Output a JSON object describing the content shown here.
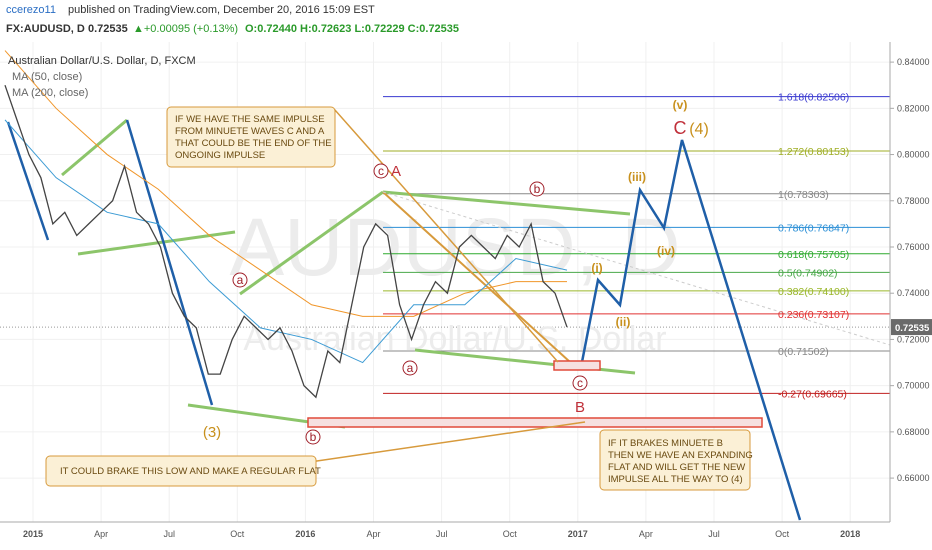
{
  "chart_data": {
    "type": "line",
    "header": {
      "author": "ccerezo11",
      "published": "published on TradingView.com, December 20, 2016 15:09 EST",
      "symbol": "FX:AUDUSD, D",
      "price": "0.72535",
      "change": "▲+0.00095 (+0.13%)",
      "ohlc": "O:0.72440 H:0.72623 L:0.72229 C:0.72535"
    },
    "watermark": "AUDUSD, D",
    "watermark_sub": "Australian Dollar/U.S. Dollar",
    "series": [
      {
        "name": "Australian Dollar/U.S. Dollar, D, FXCM",
        "color": "#444444",
        "values": [
          0.83,
          0.815,
          0.8,
          0.79,
          0.77,
          0.775,
          0.765,
          0.77,
          0.775,
          0.78,
          0.795,
          0.775,
          0.77,
          0.76,
          0.74,
          0.73,
          0.725,
          0.705,
          0.705,
          0.72,
          0.73,
          0.725,
          0.72,
          0.725,
          0.715,
          0.7,
          0.695,
          0.715,
          0.71,
          0.735,
          0.76,
          0.77,
          0.765,
          0.735,
          0.72,
          0.735,
          0.745,
          0.74,
          0.76,
          0.765,
          0.76,
          0.755,
          0.765,
          0.76,
          0.77,
          0.745,
          0.74,
          0.72535
        ]
      },
      {
        "name": "MA (50, close)",
        "color": "#3c9bd4",
        "values": [
          0.815,
          0.79,
          0.775,
          0.77,
          0.745,
          0.725,
          0.72,
          0.71,
          0.735,
          0.735,
          0.755,
          0.75
        ]
      },
      {
        "name": "MA (200, close)",
        "color": "#f0962a",
        "values": [
          0.845,
          0.82,
          0.8,
          0.785,
          0.765,
          0.75,
          0.735,
          0.73,
          0.73,
          0.74,
          0.745,
          0.745
        ]
      }
    ],
    "ylim": [
      0.641,
      0.8487
    ],
    "yticks": [
      {
        "value": 0.84,
        "label": "0.84000"
      },
      {
        "value": 0.82,
        "label": "0.82000"
      },
      {
        "value": 0.8,
        "label": "0.80000"
      },
      {
        "value": 0.78,
        "label": "0.78000"
      },
      {
        "value": 0.76,
        "label": "0.76000"
      },
      {
        "value": 0.74,
        "label": "0.74000"
      },
      {
        "value": 0.72,
        "label": "0.72000"
      },
      {
        "value": 0.7,
        "label": "0.70000"
      },
      {
        "value": 0.68,
        "label": "0.68000"
      },
      {
        "value": 0.66,
        "label": "0.66000"
      }
    ],
    "x_labels": [
      "2015",
      "Apr",
      "Jul",
      "Oct",
      "2016",
      "Apr",
      "Jul",
      "Oct",
      "2017",
      "Apr",
      "Jul",
      "Oct",
      "2018"
    ],
    "last_price": {
      "value": 0.72535,
      "label": "0.72535"
    },
    "fib_levels": [
      {
        "value": 0.82506,
        "label": "1.618(0.82506)",
        "color": "#3a3ad0"
      },
      {
        "value": 0.80153,
        "label": "1.272(0.80153)",
        "color": "#9fae24"
      },
      {
        "value": 0.78303,
        "label": "1(0.78303)",
        "color": "#888888"
      },
      {
        "value": 0.76847,
        "label": "0.786(0.76847)",
        "color": "#2b8fd6"
      },
      {
        "value": 0.75705,
        "label": "0.618(0.75705)",
        "color": "#2eaa2e"
      },
      {
        "value": 0.74902,
        "label": "0.5(0.74902)",
        "color": "#4aa84a"
      },
      {
        "value": 0.741,
        "label": "0.382(0.74100)",
        "color": "#9ab72a"
      },
      {
        "value": 0.73107,
        "label": "0.236(0.73107)",
        "color": "#e03030"
      },
      {
        "value": 0.71502,
        "label": "0(0.71502)",
        "color": "#888888"
      },
      {
        "value": 0.69665,
        "label": "-0.27(0.69665)",
        "color": "#c02020"
      }
    ],
    "callouts": [
      [
        "IF WE HAVE THE SAME IMPULSE",
        "FROM MINUETE WAVES C AND A",
        "THAT COULD BE THE END OF THE",
        "ONGOING IMPULSE"
      ],
      [
        "IT COULD BRAKE THIS LOW AND MAKE A REGULAR FLAT"
      ],
      [
        "IF IT BRAKES MINUETE B",
        "THEN WE HAVE AN EXPANDING",
        "FLAT AND WILL GET THE NEW",
        "IMPULSE ALL THE WAY TO (4)"
      ]
    ],
    "waves": [
      "c",
      "A",
      "b",
      "a",
      "a",
      "b",
      "(3)",
      "c",
      "B",
      "(i)",
      "(ii)",
      "(iii)",
      "(iv)",
      "(v)",
      "C",
      "(4)"
    ]
  }
}
